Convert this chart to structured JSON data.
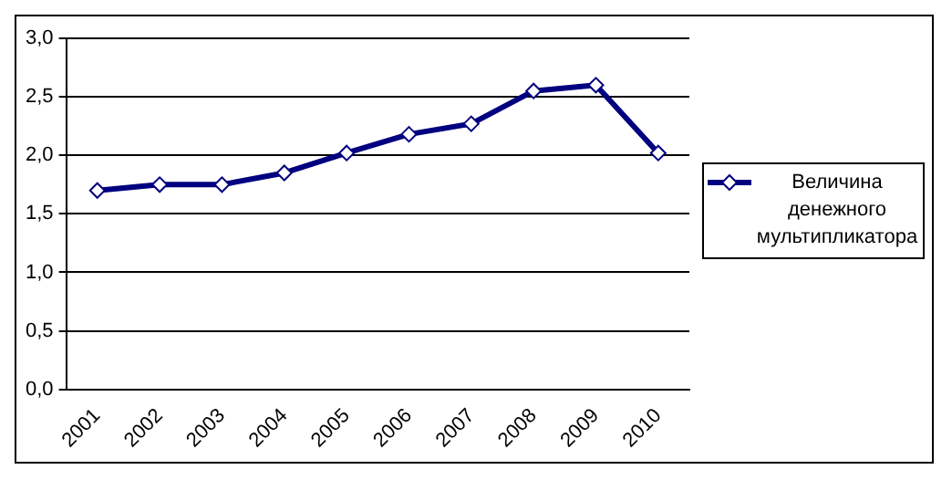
{
  "chart_data": {
    "type": "line",
    "categories": [
      "2001",
      "2002",
      "2003",
      "2004",
      "2005",
      "2006",
      "2007",
      "2008",
      "2009",
      "2010"
    ],
    "series": [
      {
        "name": "Величина денежного мультипликатора",
        "color": "#000080",
        "values": [
          1.7,
          1.75,
          1.75,
          1.85,
          2.02,
          2.18,
          2.27,
          2.55,
          2.6,
          2.02
        ]
      }
    ],
    "ylim": [
      0,
      3
    ],
    "yticks": [
      {
        "value": 0,
        "label": "0,0"
      },
      {
        "value": 0.5,
        "label": "0,5"
      },
      {
        "value": 1,
        "label": "1,0"
      },
      {
        "value": 1.5,
        "label": "1,5"
      },
      {
        "value": 2,
        "label": "2,0"
      },
      {
        "value": 2.5,
        "label": "2,5"
      },
      {
        "value": 3,
        "label": "3,0"
      }
    ],
    "grid": "y",
    "legend": "right",
    "marker": "diamond",
    "line_style": "solid"
  }
}
